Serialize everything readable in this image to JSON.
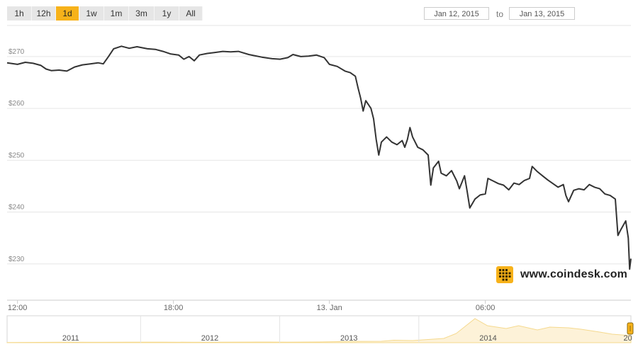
{
  "zoom": {
    "buttons": [
      "1h",
      "12h",
      "1d",
      "1w",
      "1m",
      "3m",
      "1y",
      "All"
    ],
    "active": "1d"
  },
  "range": {
    "from": "Jan 12, 2015",
    "to_label": "to",
    "to": "Jan 13, 2015"
  },
  "brand": {
    "text": "www.coindesk.com",
    "logo_icon": "coindesk-logo-icon",
    "logo_color": "#f7b21a"
  },
  "colors": {
    "line": "#333333",
    "accent": "#f7b21a",
    "grid": "#e6e6e6"
  },
  "chart_data": {
    "type": "line",
    "title": "",
    "xlabel": "",
    "ylabel": "",
    "y_tick_labels": [
      "$270",
      "$260",
      "$250",
      "$240",
      "$230"
    ],
    "y_ticks": [
      270,
      260,
      250,
      240,
      230
    ],
    "ylim": [
      223,
      276
    ],
    "x_tick_labels": [
      "12:00",
      "18:00",
      "13. Jan",
      "06:00"
    ],
    "x_ticks": [
      12,
      18,
      24,
      30
    ],
    "xlim": [
      11.6,
      35.6
    ],
    "x_unit": "hours from Jan 12 00:00",
    "series": [
      {
        "values": [
          [
            11.6,
            268.8
          ],
          [
            12.0,
            268.5
          ],
          [
            12.3,
            268.9
          ],
          [
            12.6,
            268.7
          ],
          [
            12.9,
            268.3
          ],
          [
            13.1,
            267.6
          ],
          [
            13.3,
            267.3
          ],
          [
            13.6,
            267.4
          ],
          [
            13.9,
            267.2
          ],
          [
            14.2,
            268.0
          ],
          [
            14.5,
            268.4
          ],
          [
            14.8,
            268.6
          ],
          [
            15.1,
            268.8
          ],
          [
            15.3,
            268.6
          ],
          [
            15.5,
            270.0
          ],
          [
            15.7,
            271.5
          ],
          [
            16.0,
            272.0
          ],
          [
            16.3,
            271.6
          ],
          [
            16.6,
            271.9
          ],
          [
            17.0,
            271.5
          ],
          [
            17.3,
            271.4
          ],
          [
            17.6,
            271.0
          ],
          [
            17.9,
            270.5
          ],
          [
            18.2,
            270.3
          ],
          [
            18.4,
            269.5
          ],
          [
            18.6,
            270.0
          ],
          [
            18.8,
            269.2
          ],
          [
            19.0,
            270.3
          ],
          [
            19.3,
            270.6
          ],
          [
            19.6,
            270.8
          ],
          [
            19.9,
            271.0
          ],
          [
            20.2,
            270.9
          ],
          [
            20.5,
            271.0
          ],
          [
            20.9,
            270.4
          ],
          [
            21.1,
            270.2
          ],
          [
            21.4,
            269.9
          ],
          [
            21.8,
            269.6
          ],
          [
            22.1,
            269.5
          ],
          [
            22.4,
            269.8
          ],
          [
            22.6,
            270.4
          ],
          [
            22.9,
            270.0
          ],
          [
            23.2,
            270.1
          ],
          [
            23.5,
            270.3
          ],
          [
            23.8,
            269.8
          ],
          [
            24.0,
            268.5
          ],
          [
            24.3,
            268.1
          ],
          [
            24.6,
            267.2
          ],
          [
            24.8,
            266.9
          ],
          [
            25.0,
            266.2
          ],
          [
            25.1,
            264.0
          ],
          [
            25.2,
            262.0
          ],
          [
            25.3,
            259.5
          ],
          [
            25.4,
            261.5
          ],
          [
            25.6,
            260.0
          ],
          [
            25.7,
            258.0
          ],
          [
            25.8,
            254.0
          ],
          [
            25.9,
            251.0
          ],
          [
            26.0,
            253.5
          ],
          [
            26.2,
            254.5
          ],
          [
            26.4,
            253.5
          ],
          [
            26.6,
            253.0
          ],
          [
            26.8,
            253.8
          ],
          [
            26.9,
            252.5
          ],
          [
            27.0,
            254.0
          ],
          [
            27.1,
            256.3
          ],
          [
            27.2,
            254.5
          ],
          [
            27.4,
            252.5
          ],
          [
            27.6,
            252.0
          ],
          [
            27.8,
            251.0
          ],
          [
            27.9,
            245.2
          ],
          [
            28.0,
            248.5
          ],
          [
            28.2,
            249.8
          ],
          [
            28.3,
            247.5
          ],
          [
            28.5,
            247.0
          ],
          [
            28.7,
            248.0
          ],
          [
            28.9,
            246.0
          ],
          [
            29.0,
            244.5
          ],
          [
            29.2,
            247.0
          ],
          [
            29.3,
            244.0
          ],
          [
            29.4,
            240.8
          ],
          [
            29.6,
            242.5
          ],
          [
            29.8,
            243.3
          ],
          [
            30.0,
            243.5
          ],
          [
            30.1,
            246.5
          ],
          [
            30.3,
            246.0
          ],
          [
            30.5,
            245.5
          ],
          [
            30.7,
            245.2
          ],
          [
            30.9,
            244.3
          ],
          [
            31.1,
            245.6
          ],
          [
            31.3,
            245.3
          ],
          [
            31.5,
            246.1
          ],
          [
            31.7,
            246.5
          ],
          [
            31.8,
            248.8
          ],
          [
            32.0,
            247.8
          ],
          [
            32.2,
            247.0
          ],
          [
            32.4,
            246.2
          ],
          [
            32.6,
            245.5
          ],
          [
            32.8,
            244.8
          ],
          [
            33.0,
            245.3
          ],
          [
            33.1,
            243.2
          ],
          [
            33.2,
            242.0
          ],
          [
            33.4,
            244.2
          ],
          [
            33.6,
            244.5
          ],
          [
            33.8,
            244.3
          ],
          [
            34.0,
            245.3
          ],
          [
            34.2,
            244.8
          ],
          [
            34.4,
            244.5
          ],
          [
            34.6,
            243.5
          ],
          [
            34.8,
            243.2
          ],
          [
            35.0,
            242.5
          ],
          [
            35.1,
            235.5
          ],
          [
            35.2,
            236.5
          ],
          [
            35.4,
            238.3
          ],
          [
            35.5,
            235.0
          ],
          [
            35.55,
            229.0
          ],
          [
            35.6,
            231.0
          ]
        ]
      }
    ]
  },
  "navigator": {
    "year_labels": [
      "2011",
      "2012",
      "2013",
      "2014",
      "20"
    ],
    "history": [
      [
        0,
        0.3
      ],
      [
        0.05,
        0.5
      ],
      [
        0.1,
        0.8
      ],
      [
        0.15,
        0.6
      ],
      [
        0.2,
        0.7
      ],
      [
        0.25,
        0.8
      ],
      [
        0.3,
        0.6
      ],
      [
        0.35,
        0.8
      ],
      [
        0.4,
        0.9
      ],
      [
        0.45,
        0.8
      ],
      [
        0.5,
        1.0
      ],
      [
        0.55,
        1.8
      ],
      [
        0.6,
        2.0
      ],
      [
        0.62,
        3.5
      ],
      [
        0.65,
        3.0
      ],
      [
        0.7,
        6.0
      ],
      [
        0.72,
        13.0
      ],
      [
        0.75,
        34.0
      ],
      [
        0.77,
        24.0
      ],
      [
        0.8,
        20.0
      ],
      [
        0.82,
        24.0
      ],
      [
        0.85,
        18.0
      ],
      [
        0.87,
        22.0
      ],
      [
        0.9,
        21.0
      ],
      [
        0.92,
        19.0
      ],
      [
        0.95,
        15.0
      ],
      [
        0.97,
        12.0
      ],
      [
        1.0,
        10.0
      ]
    ]
  }
}
